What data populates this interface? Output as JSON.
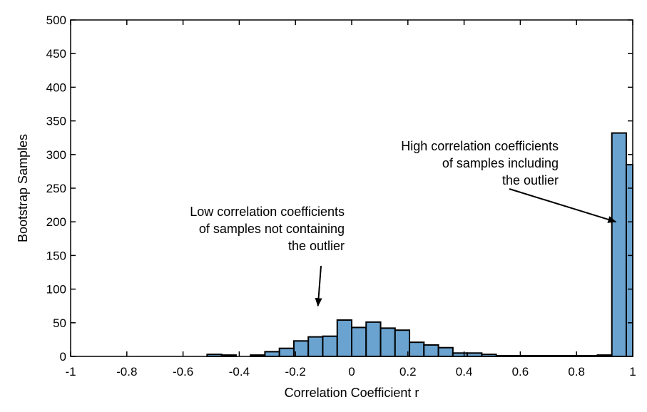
{
  "chart_data": {
    "type": "bar",
    "subtype": "histogram",
    "title": "",
    "xlabel": "Correlation Coefficient r",
    "ylabel": "Bootstrap Samples",
    "xlim": [
      -1,
      1
    ],
    "ylim": [
      0,
      500
    ],
    "xticks": [
      -1,
      -0.8,
      -0.6,
      -0.4,
      -0.2,
      0,
      0.2,
      0.4,
      0.6,
      0.8,
      1
    ],
    "xtick_labels": [
      "-1",
      "-0.8",
      "-0.6",
      "-0.4",
      "-0.2",
      "0",
      "0.2",
      "0.4",
      "0.6",
      "0.8",
      "1"
    ],
    "yticks": [
      0,
      50,
      100,
      150,
      200,
      250,
      300,
      350,
      400,
      450,
      500
    ],
    "ytick_labels": [
      "0",
      "50",
      "100",
      "150",
      "200",
      "250",
      "300",
      "350",
      "400",
      "450",
      "500"
    ],
    "grid": false,
    "bar_color": "#6aa3d0",
    "edge_color": "#000000",
    "bins": [
      {
        "x0": -0.5143,
        "x1": -0.4629,
        "count": 3
      },
      {
        "x0": -0.4629,
        "x1": -0.4114,
        "count": 2
      },
      {
        "x0": -0.4114,
        "x1": -0.36,
        "count": 0
      },
      {
        "x0": -0.36,
        "x1": -0.3086,
        "count": 2
      },
      {
        "x0": -0.3086,
        "x1": -0.2571,
        "count": 7
      },
      {
        "x0": -0.2571,
        "x1": -0.2057,
        "count": 12
      },
      {
        "x0": -0.2057,
        "x1": -0.1543,
        "count": 23
      },
      {
        "x0": -0.1543,
        "x1": -0.1029,
        "count": 29
      },
      {
        "x0": -0.1029,
        "x1": -0.0514,
        "count": 30
      },
      {
        "x0": -0.0514,
        "x1": 0.0,
        "count": 54
      },
      {
        "x0": 0.0,
        "x1": 0.0514,
        "count": 43
      },
      {
        "x0": 0.0514,
        "x1": 0.1029,
        "count": 51
      },
      {
        "x0": 0.1029,
        "x1": 0.1543,
        "count": 42
      },
      {
        "x0": 0.1543,
        "x1": 0.2057,
        "count": 39
      },
      {
        "x0": 0.2057,
        "x1": 0.2571,
        "count": 21
      },
      {
        "x0": 0.2571,
        "x1": 0.3086,
        "count": 17
      },
      {
        "x0": 0.3086,
        "x1": 0.36,
        "count": 13
      },
      {
        "x0": 0.36,
        "x1": 0.4114,
        "count": 5
      },
      {
        "x0": 0.4114,
        "x1": 0.4629,
        "count": 5
      },
      {
        "x0": 0.4629,
        "x1": 0.5143,
        "count": 3
      },
      {
        "x0": 0.5143,
        "x1": 0.5657,
        "count": 1
      },
      {
        "x0": 0.5657,
        "x1": 0.6171,
        "count": 1
      },
      {
        "x0": 0.6171,
        "x1": 0.6686,
        "count": 1
      },
      {
        "x0": 0.6686,
        "x1": 0.72,
        "count": 1
      },
      {
        "x0": 0.72,
        "x1": 0.7714,
        "count": 1
      },
      {
        "x0": 0.7714,
        "x1": 0.8229,
        "count": 1
      },
      {
        "x0": 0.8229,
        "x1": 0.8743,
        "count": 1
      },
      {
        "x0": 0.8743,
        "x1": 0.9257,
        "count": 2
      },
      {
        "x0": 0.9257,
        "x1": 0.9771,
        "count": 332
      },
      {
        "x0": 0.9771,
        "x1": 1.0,
        "count": 285
      }
    ],
    "annotations": [
      {
        "lines": [
          "High correlation coefficients",
          "of samples including",
          "the outlier"
        ],
        "arrow_to": {
          "x": 0.94,
          "y": 200
        }
      },
      {
        "lines": [
          "Low correlation coefficients",
          "of samples not containing",
          "the outlier"
        ],
        "arrow_to": {
          "x": -0.12,
          "y": 75
        }
      }
    ]
  }
}
